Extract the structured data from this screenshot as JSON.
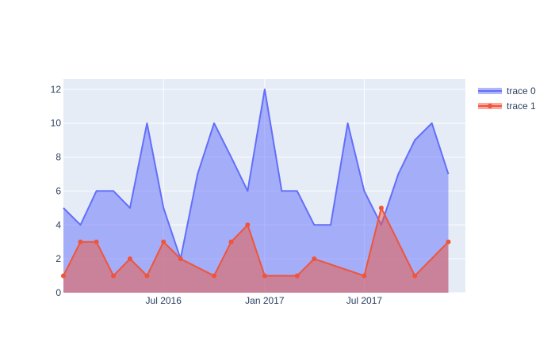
{
  "chart_data": {
    "type": "area",
    "title": "",
    "xlabel": "",
    "ylabel": "",
    "x_dates": [
      "2016-01-01",
      "2016-02-01",
      "2016-03-01",
      "2016-04-01",
      "2016-05-01",
      "2016-06-01",
      "2016-07-01",
      "2016-08-01",
      "2016-09-01",
      "2016-10-01",
      "2016-11-01",
      "2016-12-01",
      "2017-01-01",
      "2017-02-01",
      "2017-03-01",
      "2017-04-01",
      "2017-05-01",
      "2017-06-01",
      "2017-07-01",
      "2017-08-01",
      "2017-09-01",
      "2017-10-01",
      "2017-11-01",
      "2017-12-01",
      "2018-01-01"
    ],
    "xlim": [
      "2016-01-01",
      "2018-01-01"
    ],
    "x_ticks": [
      "2016-07-01",
      "2017-01-01",
      "2017-07-01"
    ],
    "x_tick_labels": [
      "Jul 2016",
      "Jan 2017",
      "Jul 2017"
    ],
    "ylim": [
      0,
      12.6
    ],
    "y_ticks": [
      0,
      2,
      4,
      6,
      8,
      10,
      12
    ],
    "y_tick_labels": [
      "0",
      "2",
      "4",
      "6",
      "8",
      "10",
      "12"
    ],
    "grid": true,
    "legend_position": "top-right",
    "series": [
      {
        "name": "trace 0",
        "color": "#636efa",
        "fill": "tozeroy",
        "markers": false,
        "points": [
          {
            "x": "2016-01-01",
            "y": 5
          },
          {
            "x": "2016-02-01",
            "y": 4
          },
          {
            "x": "2016-03-01",
            "y": 6
          },
          {
            "x": "2016-04-01",
            "y": 6
          },
          {
            "x": "2016-05-01",
            "y": 5
          },
          {
            "x": "2016-06-01",
            "y": 10
          },
          {
            "x": "2016-07-01",
            "y": 5
          },
          {
            "x": "2016-08-01",
            "y": 2
          },
          {
            "x": "2016-09-01",
            "y": 7
          },
          {
            "x": "2016-10-01",
            "y": 10
          },
          {
            "x": "2016-11-01",
            "y": 8
          },
          {
            "x": "2016-12-01",
            "y": 6
          },
          {
            "x": "2017-01-01",
            "y": 12
          },
          {
            "x": "2017-02-01",
            "y": 6
          },
          {
            "x": "2017-03-01",
            "y": 6
          },
          {
            "x": "2017-04-01",
            "y": 4
          },
          {
            "x": "2017-05-01",
            "y": 4
          },
          {
            "x": "2017-06-01",
            "y": 10
          },
          {
            "x": "2017-07-01",
            "y": 6
          },
          {
            "x": "2017-08-01",
            "y": 4
          },
          {
            "x": "2017-09-01",
            "y": 7
          },
          {
            "x": "2017-10-01",
            "y": 9
          },
          {
            "x": "2017-11-01",
            "y": 10
          },
          {
            "x": "2017-12-01",
            "y": 7
          }
        ]
      },
      {
        "name": "trace 1",
        "color": "#ef553b",
        "fill": "tozeroy",
        "markers": true,
        "points": [
          {
            "x": "2016-01-01",
            "y": 1
          },
          {
            "x": "2016-02-01",
            "y": 3
          },
          {
            "x": "2016-03-01",
            "y": 3
          },
          {
            "x": "2016-04-01",
            "y": 1
          },
          {
            "x": "2016-05-01",
            "y": 2
          },
          {
            "x": "2016-06-01",
            "y": 1
          },
          {
            "x": "2016-07-01",
            "y": 3
          },
          {
            "x": "2016-08-01",
            "y": 2
          },
          {
            "x": "2016-10-01",
            "y": 1
          },
          {
            "x": "2016-11-01",
            "y": 3
          },
          {
            "x": "2016-12-01",
            "y": 4
          },
          {
            "x": "2017-01-01",
            "y": 1
          },
          {
            "x": "2017-03-01",
            "y": 1
          },
          {
            "x": "2017-04-01",
            "y": 2
          },
          {
            "x": "2017-07-01",
            "y": 1
          },
          {
            "x": "2017-08-01",
            "y": 5
          },
          {
            "x": "2017-10-01",
            "y": 1
          },
          {
            "x": "2017-12-01",
            "y": 3
          }
        ]
      }
    ],
    "colors": {
      "plot_background": "#e5ecf6",
      "gridline": "#ffffff",
      "text": "#2a3f5f"
    }
  }
}
